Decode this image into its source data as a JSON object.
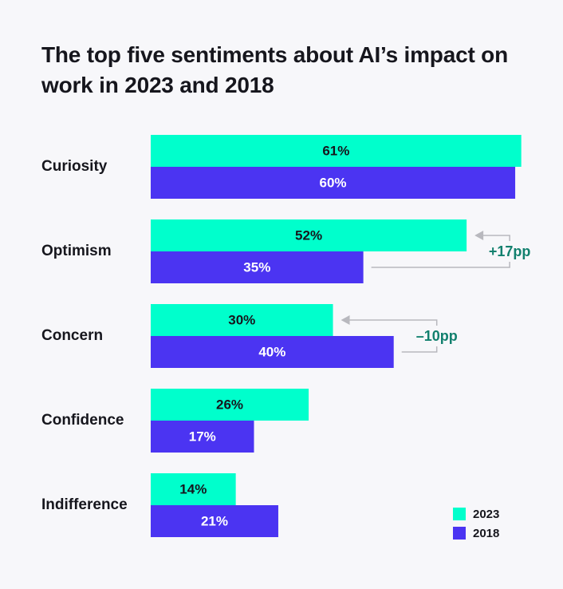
{
  "chart_data": {
    "type": "bar",
    "orientation": "horizontal",
    "title": "The top five sentiments about AI’s impact on work in 2023 and 2018",
    "categories": [
      "Curiosity",
      "Optimism",
      "Concern",
      "Confidence",
      "Indifference"
    ],
    "series": [
      {
        "name": "2023",
        "color": "#00ffcc",
        "label_color": "#16161d",
        "values": [
          61,
          52,
          30,
          26,
          14
        ],
        "labels": [
          "61%",
          "52%",
          "30%",
          "26%",
          "14%"
        ]
      },
      {
        "name": "2018",
        "color": "#4b34f2",
        "label_color": "#ffffff",
        "values": [
          60,
          35,
          40,
          17,
          21
        ],
        "labels": [
          "60%",
          "35%",
          "40%",
          "17%",
          "21%"
        ]
      }
    ],
    "xlim": [
      0,
      68
    ],
    "grid": false,
    "legend": {
      "position": "bottom-right",
      "entries": [
        "2023",
        "2018"
      ]
    },
    "annotations": [
      {
        "category": "Optimism",
        "text": "+17pp",
        "color": "#12806e"
      },
      {
        "category": "Concern",
        "text": "–10pp",
        "color": "#12806e"
      }
    ]
  }
}
